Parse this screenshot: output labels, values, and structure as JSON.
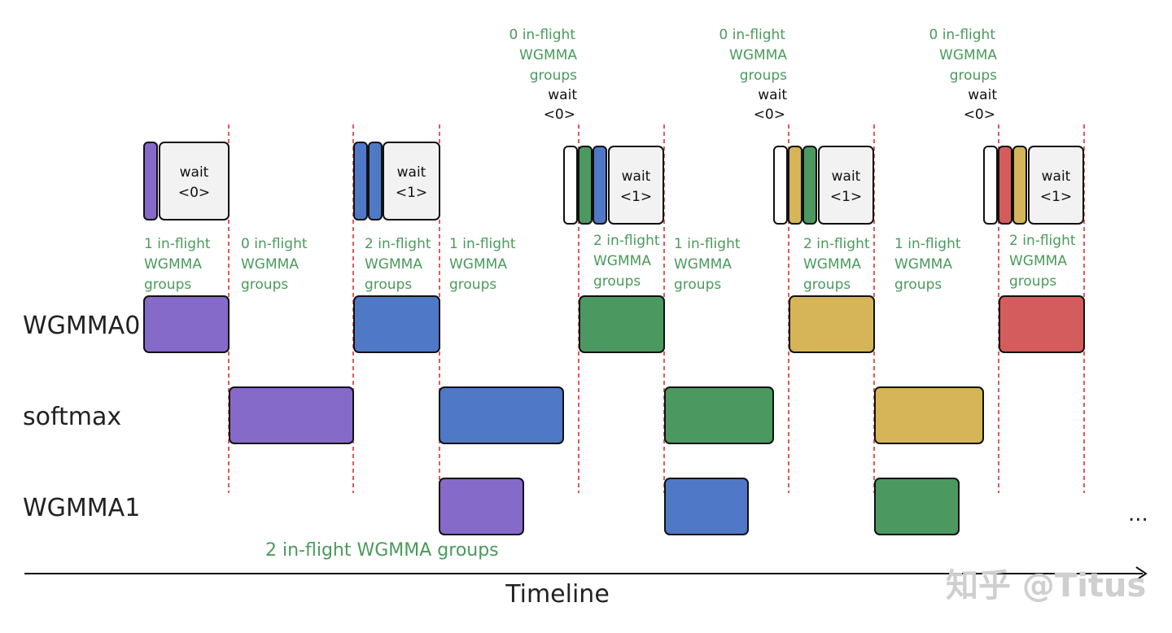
{
  "colors": {
    "purple": "#856ac9",
    "blue": "#4f79c6",
    "green": "#4b9960",
    "yellow": "#d5b557",
    "red": "#d45c5c",
    "annotation_green": "#4a9a5c",
    "divider_red": "#e05a5a",
    "wait_fill": "#f2f2f2"
  },
  "rows": {
    "wgmma0": "WGMMA0",
    "softmax": "softmax",
    "wgmma1": "WGMMA1"
  },
  "blocks": {
    "wgmma0": [
      "purple",
      "blue",
      "green",
      "yellow",
      "red"
    ],
    "softmax": [
      "purple",
      "blue",
      "green",
      "yellow"
    ],
    "wgmma1": [
      "purple",
      "blue",
      "green"
    ]
  },
  "queues": [
    {
      "slots": [
        "purple"
      ],
      "wait": "wait",
      "wait_n": "<0>"
    },
    {
      "slots": [
        "blue",
        "blue"
      ],
      "wait": "wait",
      "wait_n": "<1>"
    },
    {
      "slots": [
        "empty",
        "green",
        "blue"
      ],
      "wait": "wait",
      "wait_n": "<1>"
    },
    {
      "slots": [
        "empty",
        "yellow",
        "green"
      ],
      "wait": "wait",
      "wait_n": "<1>"
    },
    {
      "slots": [
        "empty",
        "red",
        "yellow"
      ],
      "wait": "wait",
      "wait_n": "<1>"
    }
  ],
  "inflight_labels": [
    {
      "line1": "1 in-flight",
      "line2": "WGMMA",
      "line3": "groups"
    },
    {
      "line1": "0 in-flight",
      "line2": "WGMMA",
      "line3": "groups"
    },
    {
      "line1": "2 in-flight",
      "line2": "WGMMA",
      "line3": "groups"
    },
    {
      "line1": "1 in-flight",
      "line2": "WGMMA",
      "line3": "groups"
    },
    {
      "line1": "2 in-flight",
      "line2": "WGMMA",
      "line3": "groups"
    },
    {
      "line1": "1 in-flight",
      "line2": "WGMMA",
      "line3": "groups"
    },
    {
      "line1": "2 in-flight",
      "line2": "WGMMA",
      "line3": "groups"
    },
    {
      "line1": "1 in-flight",
      "line2": "WGMMA",
      "line3": "groups"
    },
    {
      "line1": "2 in-flight",
      "line2": "WGMMA",
      "line3": "groups"
    }
  ],
  "top_annotations": [
    {
      "line1": "0 in-flight",
      "line2": "WGMMA",
      "line3": "groups",
      "line4": "wait",
      "line5": "<0>"
    },
    {
      "line1": "0 in-flight",
      "line2": "WGMMA",
      "line3": "groups",
      "line4": "wait",
      "line5": "<0>"
    },
    {
      "line1": "0 in-flight",
      "line2": "WGMMA",
      "line3": "groups",
      "line4": "wait",
      "line5": "<0>"
    }
  ],
  "bottom_note": "2 in-flight WGMMA groups",
  "axis_label": "Timeline",
  "ellipsis": "...",
  "watermark": "知乎 @Titus"
}
